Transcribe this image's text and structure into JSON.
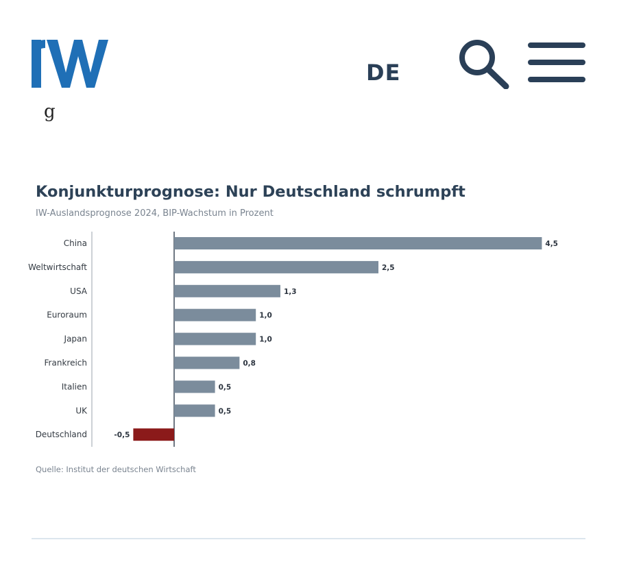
{
  "header": {
    "logo_text": "IW",
    "language": "DE",
    "search_icon": "search-icon",
    "menu_icon": "hamburger-menu-icon"
  },
  "colors": {
    "brand_blue": "#1f6fb6",
    "navy": "#2a3f57",
    "bar_positive": "#7b8c9c",
    "bar_negative": "#8b1a1a"
  },
  "chart_data": {
    "type": "bar",
    "orientation": "horizontal",
    "title": "Konjunkturprognose: Nur Deutschland schrumpft",
    "subtitle": "IW-Auslandsprognose 2024, BIP-Wachstum in Prozent",
    "categories": [
      "China",
      "Weltwirtschaft",
      "USA",
      "Euroraum",
      "Japan",
      "Frankreich",
      "Italien",
      "UK",
      "Deutschland"
    ],
    "values": [
      4.5,
      2.5,
      1.3,
      1.0,
      1.0,
      0.8,
      0.5,
      0.5,
      -0.5
    ],
    "value_labels": [
      "4,5",
      "2,5",
      "1,3",
      "1,0",
      "1,0",
      "0,8",
      "0,5",
      "0,5",
      "-0,5"
    ],
    "xlim": [
      -0.5,
      4.5
    ],
    "source": "Quelle: Institut der deutschen Wirtschaft"
  }
}
